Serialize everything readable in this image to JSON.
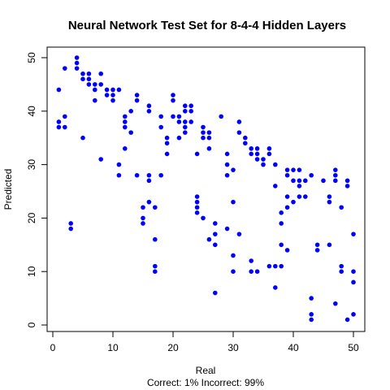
{
  "chart_data": {
    "type": "scatter",
    "title": "Neural Network Test Set for 8-4-4 Hidden Layers",
    "xlabel": "Real",
    "ylabel": "Predicted",
    "subtitle": "Correct: 1% Incorrect: 99%",
    "xlim": [
      0,
      50
    ],
    "ylim": [
      0,
      50
    ],
    "xticks": [
      0,
      10,
      20,
      30,
      40,
      50
    ],
    "yticks": [
      0,
      10,
      20,
      30,
      40,
      50
    ],
    "point_color": "#0000ff",
    "grid": false,
    "points": [
      [
        1,
        44
      ],
      [
        1,
        38
      ],
      [
        1,
        37
      ],
      [
        2,
        48
      ],
      [
        2,
        39
      ],
      [
        2,
        37
      ],
      [
        3,
        19
      ],
      [
        3,
        18
      ],
      [
        4,
        50
      ],
      [
        4,
        49
      ],
      [
        4,
        48
      ],
      [
        5,
        47
      ],
      [
        5,
        46
      ],
      [
        5,
        35
      ],
      [
        6,
        47
      ],
      [
        6,
        46
      ],
      [
        6,
        45
      ],
      [
        7,
        45
      ],
      [
        7,
        44
      ],
      [
        7,
        42
      ],
      [
        8,
        47
      ],
      [
        8,
        45
      ],
      [
        8,
        31
      ],
      [
        9,
        44
      ],
      [
        9,
        43
      ],
      [
        10,
        44
      ],
      [
        10,
        43
      ],
      [
        10,
        42
      ],
      [
        11,
        44
      ],
      [
        11,
        30
      ],
      [
        11,
        28
      ],
      [
        12,
        39
      ],
      [
        12,
        38
      ],
      [
        12,
        37
      ],
      [
        12,
        33
      ],
      [
        13,
        40
      ],
      [
        13,
        36
      ],
      [
        14,
        43
      ],
      [
        14,
        42
      ],
      [
        14,
        28
      ],
      [
        15,
        22
      ],
      [
        15,
        20
      ],
      [
        15,
        19
      ],
      [
        16,
        41
      ],
      [
        16,
        40
      ],
      [
        16,
        28
      ],
      [
        16,
        27
      ],
      [
        16,
        23
      ],
      [
        17,
        22
      ],
      [
        17,
        16
      ],
      [
        17,
        11
      ],
      [
        17,
        10
      ],
      [
        18,
        39
      ],
      [
        18,
        37
      ],
      [
        18,
        28
      ],
      [
        19,
        35
      ],
      [
        19,
        34
      ],
      [
        19,
        32
      ],
      [
        20,
        43
      ],
      [
        20,
        42
      ],
      [
        20,
        39
      ],
      [
        21,
        39
      ],
      [
        21,
        38
      ],
      [
        21,
        35
      ],
      [
        22,
        41
      ],
      [
        22,
        40
      ],
      [
        22,
        38
      ],
      [
        22,
        37
      ],
      [
        22,
        36
      ],
      [
        23,
        41
      ],
      [
        23,
        40
      ],
      [
        23,
        38
      ],
      [
        24,
        32
      ],
      [
        24,
        24
      ],
      [
        24,
        23
      ],
      [
        24,
        22
      ],
      [
        24,
        21
      ],
      [
        25,
        37
      ],
      [
        25,
        36
      ],
      [
        25,
        35
      ],
      [
        25,
        20
      ],
      [
        26,
        36
      ],
      [
        26,
        35
      ],
      [
        26,
        33
      ],
      [
        26,
        16
      ],
      [
        27,
        19
      ],
      [
        27,
        17
      ],
      [
        27,
        15
      ],
      [
        27,
        6
      ],
      [
        28,
        39
      ],
      [
        29,
        32
      ],
      [
        29,
        30
      ],
      [
        29,
        28
      ],
      [
        29,
        18
      ],
      [
        30,
        29
      ],
      [
        30,
        23
      ],
      [
        30,
        13
      ],
      [
        30,
        10
      ],
      [
        31,
        38
      ],
      [
        31,
        36
      ],
      [
        31,
        17
      ],
      [
        32,
        35
      ],
      [
        32,
        34
      ],
      [
        33,
        33
      ],
      [
        33,
        32
      ],
      [
        33,
        12
      ],
      [
        33,
        10
      ],
      [
        34,
        33
      ],
      [
        34,
        32
      ],
      [
        34,
        31
      ],
      [
        34,
        10
      ],
      [
        35,
        31
      ],
      [
        35,
        30
      ],
      [
        36,
        33
      ],
      [
        36,
        32
      ],
      [
        36,
        11
      ],
      [
        37,
        30
      ],
      [
        37,
        26
      ],
      [
        37,
        11
      ],
      [
        37,
        7
      ],
      [
        38,
        21
      ],
      [
        38,
        19
      ],
      [
        38,
        15
      ],
      [
        38,
        11
      ],
      [
        39,
        29
      ],
      [
        39,
        28
      ],
      [
        39,
        24
      ],
      [
        39,
        22
      ],
      [
        39,
        14
      ],
      [
        40,
        29
      ],
      [
        40,
        27
      ],
      [
        40,
        23
      ],
      [
        41,
        29
      ],
      [
        41,
        27
      ],
      [
        41,
        26
      ],
      [
        41,
        24
      ],
      [
        42,
        27
      ],
      [
        42,
        24
      ],
      [
        43,
        28
      ],
      [
        43,
        5
      ],
      [
        43,
        2
      ],
      [
        43,
        1
      ],
      [
        44,
        15
      ],
      [
        44,
        14
      ],
      [
        45,
        27
      ],
      [
        46,
        24
      ],
      [
        46,
        23
      ],
      [
        46,
        15
      ],
      [
        47,
        29
      ],
      [
        47,
        28
      ],
      [
        47,
        27
      ],
      [
        47,
        4
      ],
      [
        48,
        22
      ],
      [
        48,
        11
      ],
      [
        48,
        10
      ],
      [
        49,
        27
      ],
      [
        49,
        26
      ],
      [
        49,
        1
      ],
      [
        50,
        17
      ],
      [
        50,
        10
      ],
      [
        50,
        8
      ],
      [
        50,
        2
      ]
    ]
  }
}
